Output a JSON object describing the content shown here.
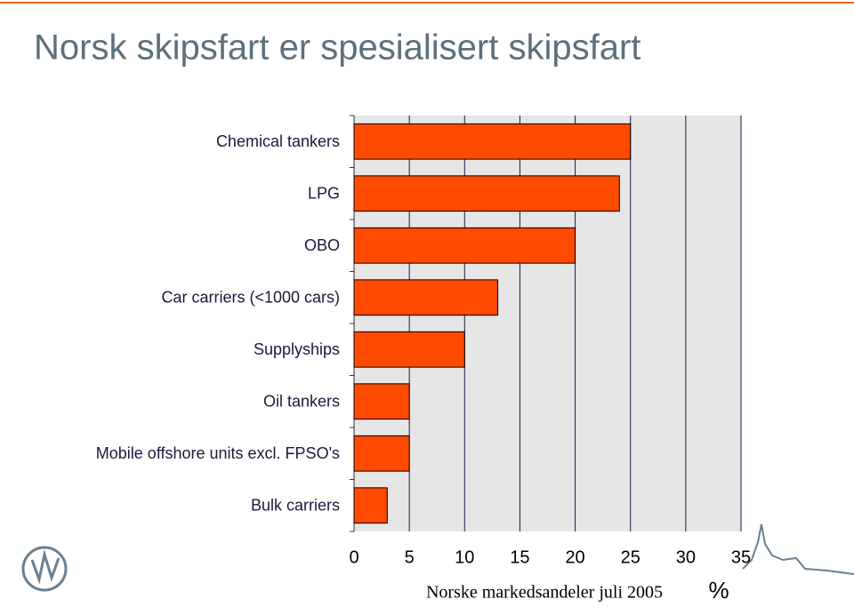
{
  "chart_data": {
    "type": "barh",
    "title": "Norsk skipsfart er spesialisert skipsfart",
    "x_label": "Norske markedsandeler juli 2005",
    "x_unit": "%",
    "categories": [
      "Chemical tankers",
      "LPG",
      "OBO",
      "Car carriers (<1000 cars)",
      "Supplyships",
      "Oil tankers",
      "Mobile offshore units excl. FPSO's",
      "Bulk carriers"
    ],
    "values": [
      25,
      24,
      20,
      13,
      10,
      5,
      5,
      3
    ],
    "color": "#ff4a00",
    "xlim": [
      0,
      35
    ],
    "xticks": [
      0,
      5,
      10,
      15,
      20,
      25,
      30,
      35
    ],
    "grid": true
  }
}
